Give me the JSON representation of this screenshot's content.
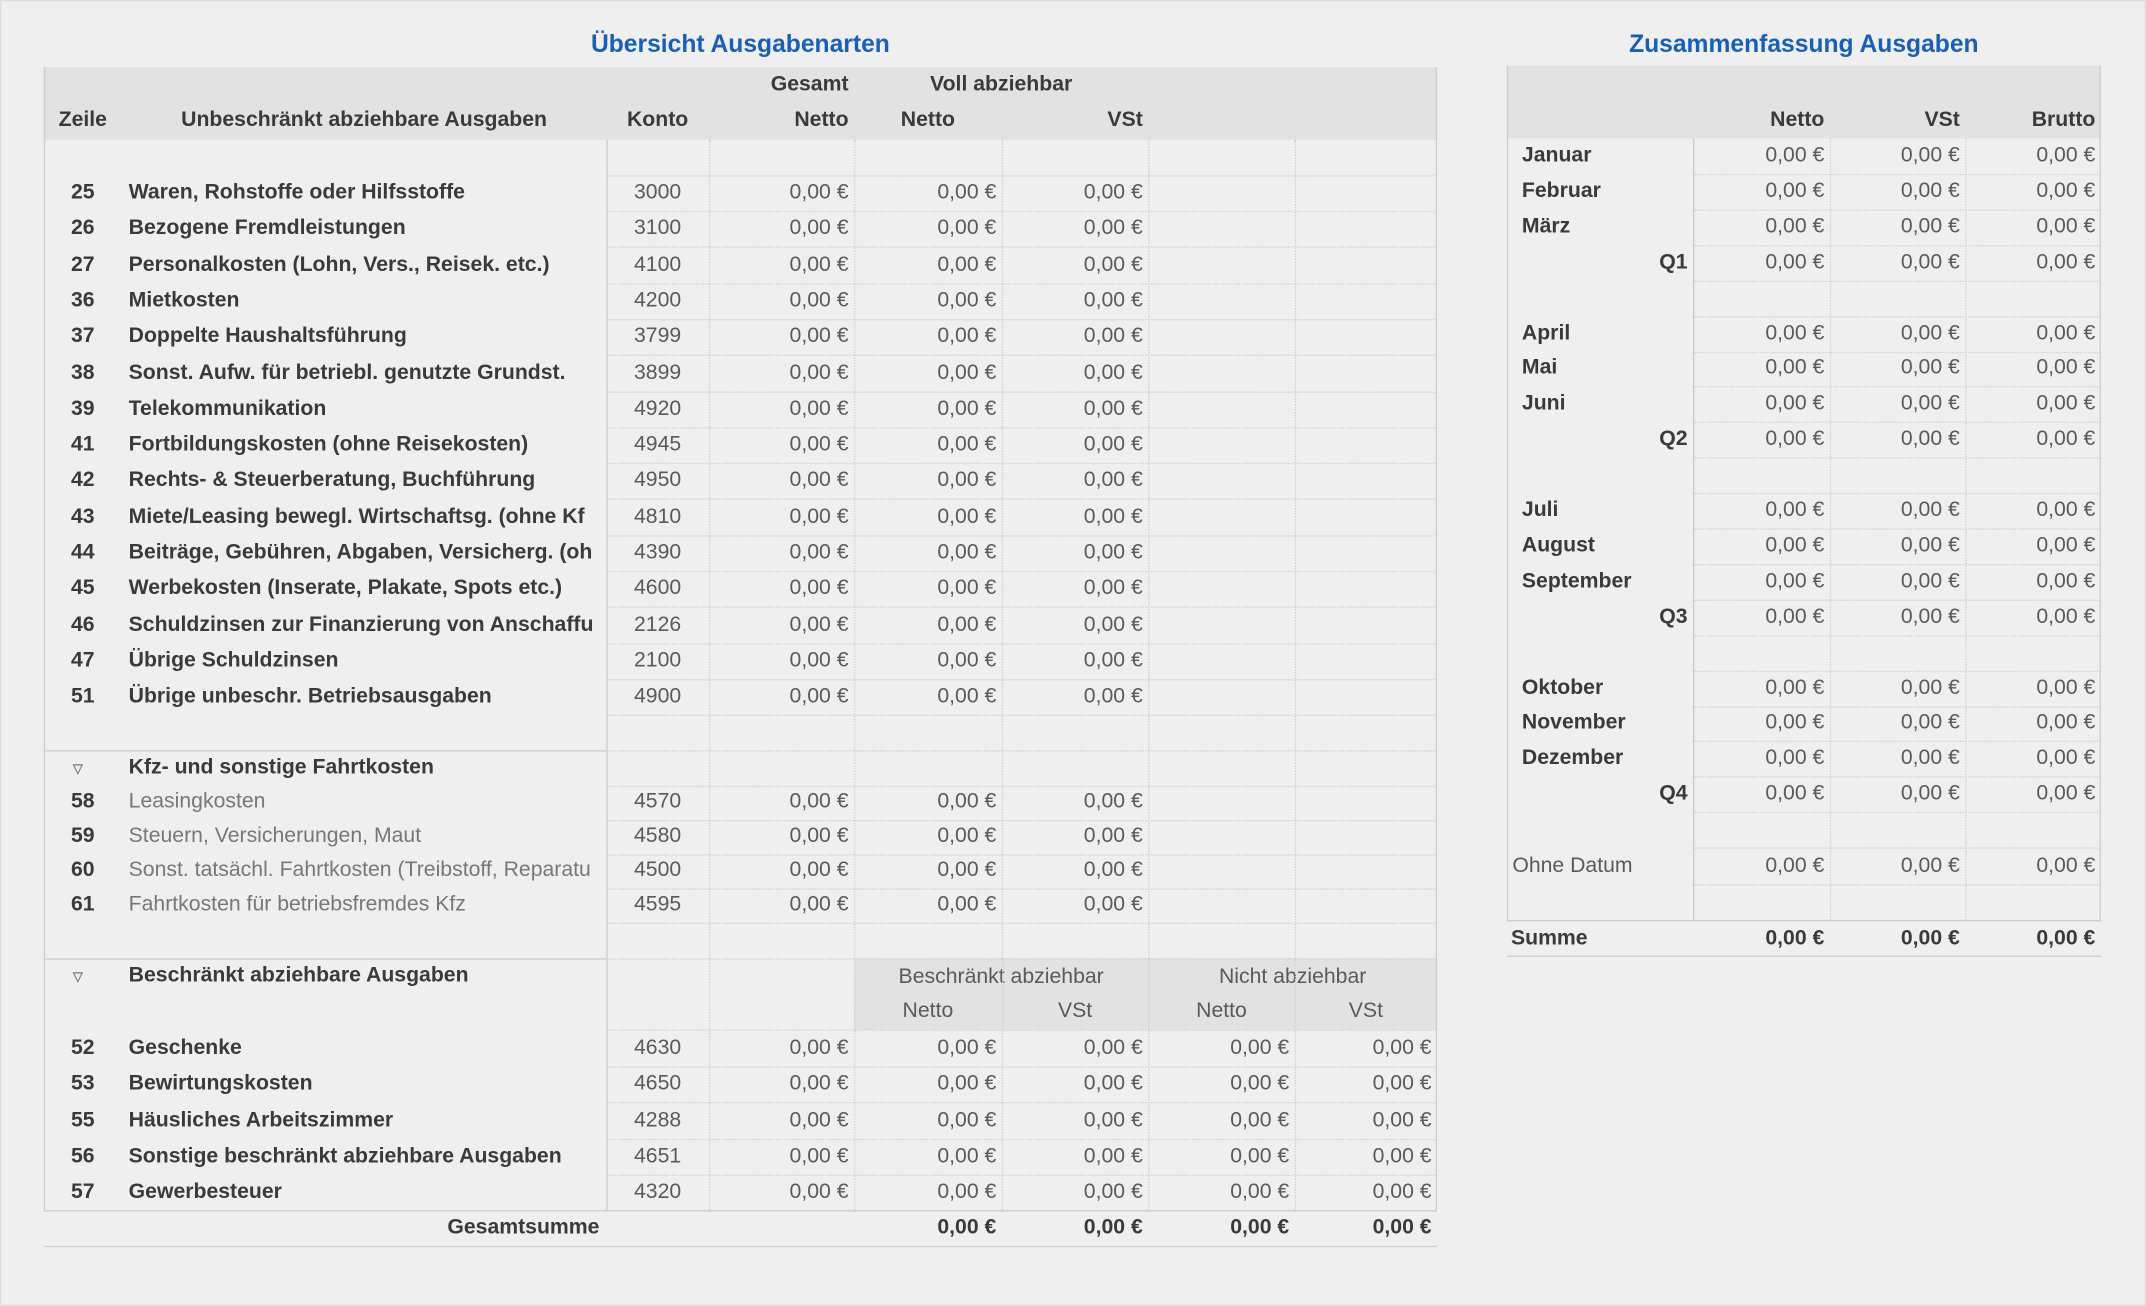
{
  "left": {
    "title": "Übersicht Ausgabenarten",
    "group_headers": [
      "Gesamt",
      "Voll abziehbar"
    ],
    "column_headers": [
      "Zeile",
      "Unbeschränkt abziehbare Ausgaben",
      "Konto",
      "Netto",
      "Netto",
      "VSt"
    ],
    "unrestricted": {
      "rows": [
        {
          "line": 25,
          "label": "Waren, Rohstoffe oder Hilfsstoffe",
          "account": 3000,
          "values": [
            "0,00 €",
            "0,00 €",
            "0,00 €"
          ]
        },
        {
          "line": 26,
          "label": "Bezogene Fremdleistungen",
          "account": 3100,
          "values": [
            "0,00 €",
            "0,00 €",
            "0,00 €"
          ]
        },
        {
          "line": 27,
          "label": "Personalkosten (Lohn, Vers., Reisek. etc.)",
          "account": 4100,
          "values": [
            "0,00 €",
            "0,00 €",
            "0,00 €"
          ]
        },
        {
          "line": 36,
          "label": "Mietkosten",
          "account": 4200,
          "values": [
            "0,00 €",
            "0,00 €",
            "0,00 €"
          ]
        },
        {
          "line": 37,
          "label": "Doppelte Haushaltsführung",
          "account": 3799,
          "values": [
            "0,00 €",
            "0,00 €",
            "0,00 €"
          ]
        },
        {
          "line": 38,
          "label": "Sonst. Aufw. für betriebl. genutzte Grundst.",
          "account": 3899,
          "values": [
            "0,00 €",
            "0,00 €",
            "0,00 €"
          ]
        },
        {
          "line": 39,
          "label": "Telekommunikation",
          "account": 4920,
          "values": [
            "0,00 €",
            "0,00 €",
            "0,00 €"
          ]
        },
        {
          "line": 41,
          "label": "Fortbildungskosten (ohne Reisekosten)",
          "account": 4945,
          "values": [
            "0,00 €",
            "0,00 €",
            "0,00 €"
          ]
        },
        {
          "line": 42,
          "label": "Rechts- & Steuerberatung, Buchführung",
          "account": 4950,
          "values": [
            "0,00 €",
            "0,00 €",
            "0,00 €"
          ]
        },
        {
          "line": 43,
          "label": "Miete/Leasing bewegl. Wirtschaftsg. (ohne Kf",
          "account": 4810,
          "values": [
            "0,00 €",
            "0,00 €",
            "0,00 €"
          ]
        },
        {
          "line": 44,
          "label": "Beiträge, Gebühren, Abgaben, Versicherg. (oh",
          "account": 4390,
          "values": [
            "0,00 €",
            "0,00 €",
            "0,00 €"
          ]
        },
        {
          "line": 45,
          "label": "Werbekosten (Inserate, Plakate, Spots etc.)",
          "account": 4600,
          "values": [
            "0,00 €",
            "0,00 €",
            "0,00 €"
          ]
        },
        {
          "line": 46,
          "label": "Schuldzinsen zur Finanzierung von Anschaffu",
          "account": 2126,
          "values": [
            "0,00 €",
            "0,00 €",
            "0,00 €"
          ]
        },
        {
          "line": 47,
          "label": "Übrige Schuldzinsen",
          "account": 2100,
          "values": [
            "0,00 €",
            "0,00 €",
            "0,00 €"
          ]
        },
        {
          "line": 51,
          "label": "Übrige unbeschr. Betriebsausgaben",
          "account": 4900,
          "values": [
            "0,00 €",
            "0,00 €",
            "0,00 €"
          ]
        }
      ]
    },
    "vehicle": {
      "title": "Kfz- und sonstige Fahrtkosten",
      "rows": [
        {
          "line": 58,
          "label": "Leasingkosten",
          "account": 4570,
          "values": [
            "0,00 €",
            "0,00 €",
            "0,00 €"
          ]
        },
        {
          "line": 59,
          "label": "Steuern, Versicherungen, Maut",
          "account": 4580,
          "values": [
            "0,00 €",
            "0,00 €",
            "0,00 €"
          ]
        },
        {
          "line": 60,
          "label": "Sonst. tatsächl. Fahrtkosten (Treibstoff, Reparatu",
          "account": 4500,
          "values": [
            "0,00 €",
            "0,00 €",
            "0,00 €"
          ]
        },
        {
          "line": 61,
          "label": "Fahrtkosten für betriebsfremdes Kfz",
          "account": 4595,
          "values": [
            "0,00 €",
            "0,00 €",
            "0,00 €"
          ]
        }
      ]
    },
    "restricted": {
      "title": "Beschränkt abziehbare Ausgaben",
      "group_headers": [
        "Beschränkt abziehbar",
        "Nicht abziehbar"
      ],
      "column_headers": [
        "Netto",
        "VSt",
        "Netto",
        "VSt"
      ],
      "rows": [
        {
          "line": 52,
          "label": "Geschenke",
          "account": 4630,
          "values": [
            "0,00 €",
            "0,00 €",
            "0,00 €",
            "0,00 €",
            "0,00 €"
          ]
        },
        {
          "line": 53,
          "label": "Bewirtungskosten",
          "account": 4650,
          "values": [
            "0,00 €",
            "0,00 €",
            "0,00 €",
            "0,00 €",
            "0,00 €"
          ]
        },
        {
          "line": 55,
          "label": "Häusliches Arbeitszimmer",
          "account": 4288,
          "values": [
            "0,00 €",
            "0,00 €",
            "0,00 €",
            "0,00 €",
            "0,00 €"
          ]
        },
        {
          "line": 56,
          "label": "Sonstige beschränkt abziehbare Ausgaben",
          "account": 4651,
          "values": [
            "0,00 €",
            "0,00 €",
            "0,00 €",
            "0,00 €",
            "0,00 €"
          ]
        },
        {
          "line": 57,
          "label": "Gewerbesteuer",
          "account": 4320,
          "values": [
            "0,00 €",
            "0,00 €",
            "0,00 €",
            "0,00 €",
            "0,00 €"
          ]
        }
      ]
    },
    "total": {
      "label": "Gesamtsumme",
      "values": [
        "0,00 €",
        "0,00 €",
        "0,00 €",
        "0,00 €"
      ]
    }
  },
  "right": {
    "title": "Zusammenfassung Ausgaben",
    "column_headers": [
      "Netto",
      "VSt",
      "Brutto"
    ],
    "quarters": [
      {
        "months": [
          {
            "label": "Januar",
            "values": [
              "0,00 €",
              "0,00 €",
              "0,00 €"
            ]
          },
          {
            "label": "Februar",
            "values": [
              "0,00 €",
              "0,00 €",
              "0,00 €"
            ]
          },
          {
            "label": "März",
            "values": [
              "0,00 €",
              "0,00 €",
              "0,00 €"
            ]
          }
        ],
        "quarter": {
          "label": "Q1",
          "values": [
            "0,00 €",
            "0,00 €",
            "0,00 €"
          ]
        }
      },
      {
        "months": [
          {
            "label": "April",
            "values": [
              "0,00 €",
              "0,00 €",
              "0,00 €"
            ]
          },
          {
            "label": "Mai",
            "values": [
              "0,00 €",
              "0,00 €",
              "0,00 €"
            ]
          },
          {
            "label": "Juni",
            "values": [
              "0,00 €",
              "0,00 €",
              "0,00 €"
            ]
          }
        ],
        "quarter": {
          "label": "Q2",
          "values": [
            "0,00 €",
            "0,00 €",
            "0,00 €"
          ]
        }
      },
      {
        "months": [
          {
            "label": "Juli",
            "values": [
              "0,00 €",
              "0,00 €",
              "0,00 €"
            ]
          },
          {
            "label": "August",
            "values": [
              "0,00 €",
              "0,00 €",
              "0,00 €"
            ]
          },
          {
            "label": "September",
            "values": [
              "0,00 €",
              "0,00 €",
              "0,00 €"
            ]
          }
        ],
        "quarter": {
          "label": "Q3",
          "values": [
            "0,00 €",
            "0,00 €",
            "0,00 €"
          ]
        }
      },
      {
        "months": [
          {
            "label": "Oktober",
            "values": [
              "0,00 €",
              "0,00 €",
              "0,00 €"
            ]
          },
          {
            "label": "November",
            "values": [
              "0,00 €",
              "0,00 €",
              "0,00 €"
            ]
          },
          {
            "label": "Dezember",
            "values": [
              "0,00 €",
              "0,00 €",
              "0,00 €"
            ]
          }
        ],
        "quarter": {
          "label": "Q4",
          "values": [
            "0,00 €",
            "0,00 €",
            "0,00 €"
          ]
        }
      }
    ],
    "undated": {
      "label": "Ohne Datum",
      "values": [
        "0,00 €",
        "0,00 €",
        "0,00 €"
      ]
    },
    "total": {
      "label": "Summe",
      "values": [
        "0,00 €",
        "0,00 €",
        "0,00 €"
      ]
    }
  }
}
